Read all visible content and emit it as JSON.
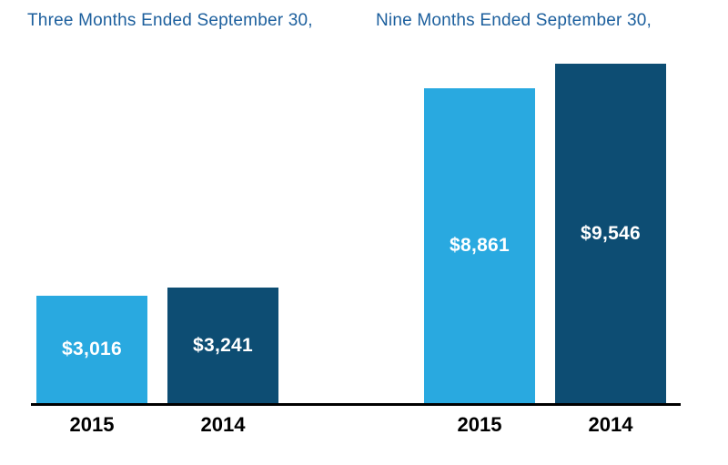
{
  "chart_data": {
    "type": "bar",
    "group_headers": [
      "Three Months Ended September 30,",
      "Nine Months Ended September 30,"
    ],
    "bars": [
      {
        "group": "Three Months Ended September 30,",
        "category": "2015",
        "value": 3016,
        "label": "$3,016",
        "series": "2015"
      },
      {
        "group": "Three Months Ended September 30,",
        "category": "2014",
        "value": 3241,
        "label": "$3,241",
        "series": "2014"
      },
      {
        "group": "Nine Months Ended September 30,",
        "category": "2015",
        "value": 8861,
        "label": "$8,861",
        "series": "2015"
      },
      {
        "group": "Nine Months Ended September 30,",
        "category": "2014",
        "value": 9546,
        "label": "$9,546",
        "series": "2014"
      }
    ],
    "series": [
      {
        "name": "2015",
        "color": "#29A9E0",
        "values": [
          3016,
          8861
        ]
      },
      {
        "name": "2014",
        "color": "#0D4D73",
        "values": [
          3241,
          9546
        ]
      }
    ],
    "categories": [
      "2015",
      "2014",
      "2015",
      "2014"
    ],
    "ylim": [
      0,
      9546
    ],
    "grid": false,
    "legend": "none",
    "colors": {
      "bar_2015": "#29A9E0",
      "bar_2014": "#0D4D73",
      "header_text": "#1C5F9D",
      "axis_line": "#000000",
      "value_label": "#FFFFFF",
      "tick_label": "#000000"
    }
  }
}
